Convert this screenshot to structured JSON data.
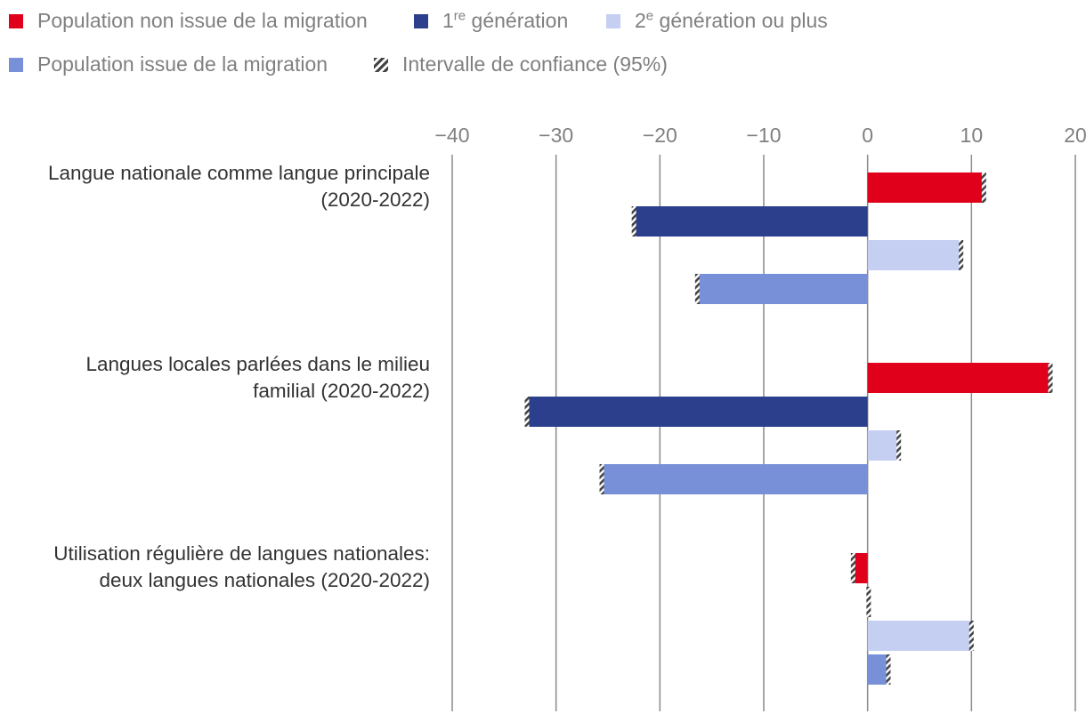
{
  "legend": {
    "items": [
      {
        "label": "Population non issue de la migration",
        "color": "#e0001b"
      },
      {
        "label": "1",
        "sup": "re",
        "suffix": " génération",
        "color": "#2b3f8c"
      },
      {
        "label": "2",
        "sup": "e",
        "suffix": " génération ou plus",
        "color": "#c4cff2"
      },
      {
        "label": "Population issue de la migration",
        "color": "#7890d8"
      },
      {
        "label": "Intervalle de confiance (95%)",
        "color": "#555555",
        "hatched": true
      }
    ]
  },
  "chart_data": {
    "type": "bar",
    "orientation": "horizontal",
    "title": "",
    "xlabel": "",
    "ylabel": "",
    "xlim": [
      -40,
      20
    ],
    "x_ticks": [
      -40,
      -30,
      -20,
      -10,
      0,
      10,
      20
    ],
    "x_tick_labels": [
      "−40",
      "−30",
      "−20",
      "−10",
      "0",
      "10",
      "20"
    ],
    "grid": true,
    "categories": [
      "Langue nationale comme langue principale\n(2020-2022)",
      "Langues locales parlées dans le milieu\nfamilial (2020-2022)",
      "Utilisation régulière de langues nationales:\ndeux langues nationales (2020-2022)"
    ],
    "series": [
      {
        "name": "Population non issue de la migration",
        "color": "#e0001b",
        "values": [
          11.2,
          17.6,
          -1.4
        ]
      },
      {
        "name": "1re génération",
        "color": "#2b3f8c",
        "values": [
          -22.5,
          -32.8,
          0.1
        ]
      },
      {
        "name": "2e génération ou plus",
        "color": "#c4cff2",
        "values": [
          9.0,
          3.0,
          10.0
        ]
      },
      {
        "name": "Population issue de la migration",
        "color": "#7890d8",
        "values": [
          -16.4,
          -25.6,
          2.0
        ]
      }
    ],
    "confidence_interval": "95%"
  }
}
